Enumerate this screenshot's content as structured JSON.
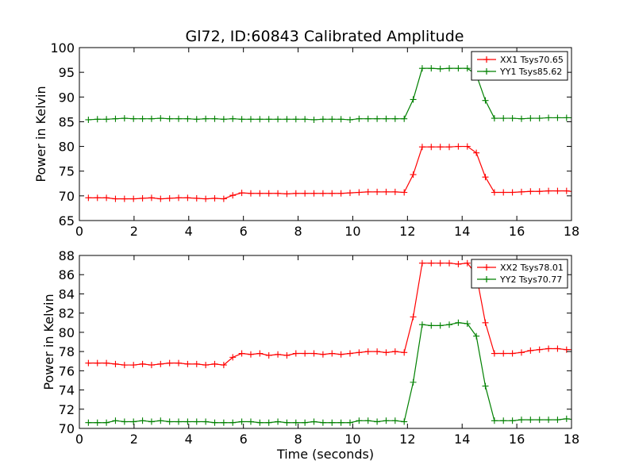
{
  "chart_data": {
    "title": "Gl72, ID:60843 Calibrated Amplitude",
    "colors": {
      "red": "#ff0000",
      "green": "#008000",
      "axis": "#000000",
      "background": "#ffffff"
    },
    "panels": [
      {
        "type": "line",
        "xlabel": "",
        "ylabel": "Power in Kelvin",
        "xlim": [
          0,
          18
        ],
        "ylim": [
          65,
          100
        ],
        "xticks": [
          0,
          2,
          4,
          6,
          8,
          10,
          12,
          14,
          16,
          18
        ],
        "yticks": [
          65,
          70,
          75,
          80,
          85,
          90,
          95,
          100
        ],
        "grid": false,
        "legend": "top-right",
        "marker": "+",
        "x": [
          0.33,
          0.66,
          0.99,
          1.32,
          1.65,
          1.98,
          2.31,
          2.64,
          2.97,
          3.3,
          3.63,
          3.96,
          4.29,
          4.62,
          4.95,
          5.28,
          5.61,
          5.94,
          6.27,
          6.6,
          6.93,
          7.26,
          7.59,
          7.92,
          8.25,
          8.58,
          8.91,
          9.24,
          9.57,
          9.9,
          10.23,
          10.56,
          10.89,
          11.22,
          11.55,
          11.88,
          12.21,
          12.54,
          12.87,
          13.2,
          13.53,
          13.86,
          14.19,
          14.52,
          14.85,
          15.18,
          15.51,
          15.84,
          16.17,
          16.5,
          16.83,
          17.16,
          17.49,
          17.82,
          18.15
        ],
        "series": [
          {
            "name": "XX1 Tsys70.65",
            "color": "#ff0000",
            "values": [
              69.6,
              69.6,
              69.6,
              69.4,
              69.4,
              69.4,
              69.5,
              69.6,
              69.4,
              69.5,
              69.6,
              69.6,
              69.5,
              69.4,
              69.5,
              69.4,
              70.1,
              70.6,
              70.5,
              70.5,
              70.5,
              70.5,
              70.4,
              70.5,
              70.5,
              70.5,
              70.5,
              70.5,
              70.5,
              70.6,
              70.7,
              70.8,
              70.8,
              70.8,
              70.8,
              70.7,
              74.3,
              79.9,
              79.9,
              79.9,
              79.9,
              80.0,
              80.0,
              78.7,
              73.8,
              70.7,
              70.7,
              70.7,
              70.8,
              70.9,
              70.9,
              71.0,
              71.0,
              71.0,
              70.8
            ]
          },
          {
            "name": "YY1 Tsys85.62",
            "color": "#008000",
            "values": [
              85.4,
              85.5,
              85.5,
              85.6,
              85.7,
              85.6,
              85.6,
              85.6,
              85.7,
              85.6,
              85.6,
              85.6,
              85.5,
              85.6,
              85.6,
              85.5,
              85.6,
              85.5,
              85.5,
              85.5,
              85.5,
              85.5,
              85.5,
              85.5,
              85.5,
              85.4,
              85.5,
              85.5,
              85.5,
              85.4,
              85.6,
              85.6,
              85.6,
              85.6,
              85.6,
              85.6,
              89.5,
              95.8,
              95.8,
              95.7,
              95.8,
              95.8,
              95.8,
              94.5,
              89.3,
              85.7,
              85.7,
              85.7,
              85.6,
              85.7,
              85.7,
              85.8,
              85.8,
              85.8,
              85.8
            ]
          }
        ]
      },
      {
        "type": "line",
        "xlabel": "Time (seconds)",
        "ylabel": "Power in Kelvin",
        "xlim": [
          0,
          18
        ],
        "ylim": [
          70,
          88
        ],
        "xticks": [
          0,
          2,
          4,
          6,
          8,
          10,
          12,
          14,
          16,
          18
        ],
        "yticks": [
          70,
          72,
          74,
          76,
          78,
          80,
          82,
          84,
          86,
          88
        ],
        "grid": false,
        "legend": "top-right",
        "marker": "+",
        "x": [
          0.33,
          0.66,
          0.99,
          1.32,
          1.65,
          1.98,
          2.31,
          2.64,
          2.97,
          3.3,
          3.63,
          3.96,
          4.29,
          4.62,
          4.95,
          5.28,
          5.61,
          5.94,
          6.27,
          6.6,
          6.93,
          7.26,
          7.59,
          7.92,
          8.25,
          8.58,
          8.91,
          9.24,
          9.57,
          9.9,
          10.23,
          10.56,
          10.89,
          11.22,
          11.55,
          11.88,
          12.21,
          12.54,
          12.87,
          13.2,
          13.53,
          13.86,
          14.19,
          14.52,
          14.85,
          15.18,
          15.51,
          15.84,
          16.17,
          16.5,
          16.83,
          17.16,
          17.49,
          17.82,
          18.15
        ],
        "series": [
          {
            "name": "XX2 Tsys78.01",
            "color": "#ff0000",
            "values": [
              76.8,
              76.8,
              76.8,
              76.7,
              76.6,
              76.6,
              76.7,
              76.6,
              76.7,
              76.8,
              76.8,
              76.7,
              76.7,
              76.6,
              76.7,
              76.6,
              77.4,
              77.8,
              77.7,
              77.8,
              77.6,
              77.7,
              77.6,
              77.8,
              77.8,
              77.8,
              77.7,
              77.8,
              77.7,
              77.8,
              77.9,
              78.0,
              78.0,
              77.9,
              78.0,
              77.9,
              81.6,
              87.2,
              87.2,
              87.2,
              87.2,
              87.1,
              87.2,
              86.0,
              81.0,
              77.8,
              77.8,
              77.8,
              77.9,
              78.1,
              78.2,
              78.3,
              78.3,
              78.2,
              78.2
            ]
          },
          {
            "name": "YY2 Tsys70.77",
            "color": "#008000",
            "values": [
              70.6,
              70.6,
              70.6,
              70.8,
              70.7,
              70.7,
              70.8,
              70.7,
              70.8,
              70.7,
              70.7,
              70.7,
              70.7,
              70.7,
              70.6,
              70.6,
              70.6,
              70.7,
              70.7,
              70.6,
              70.6,
              70.7,
              70.6,
              70.6,
              70.6,
              70.7,
              70.6,
              70.6,
              70.6,
              70.6,
              70.8,
              70.8,
              70.7,
              70.8,
              70.8,
              70.7,
              74.8,
              80.8,
              80.7,
              80.7,
              80.8,
              81.0,
              80.9,
              79.6,
              74.4,
              70.8,
              70.8,
              70.8,
              70.9,
              70.9,
              70.9,
              70.9,
              70.9,
              71.0,
              70.9
            ]
          }
        ]
      }
    ]
  }
}
